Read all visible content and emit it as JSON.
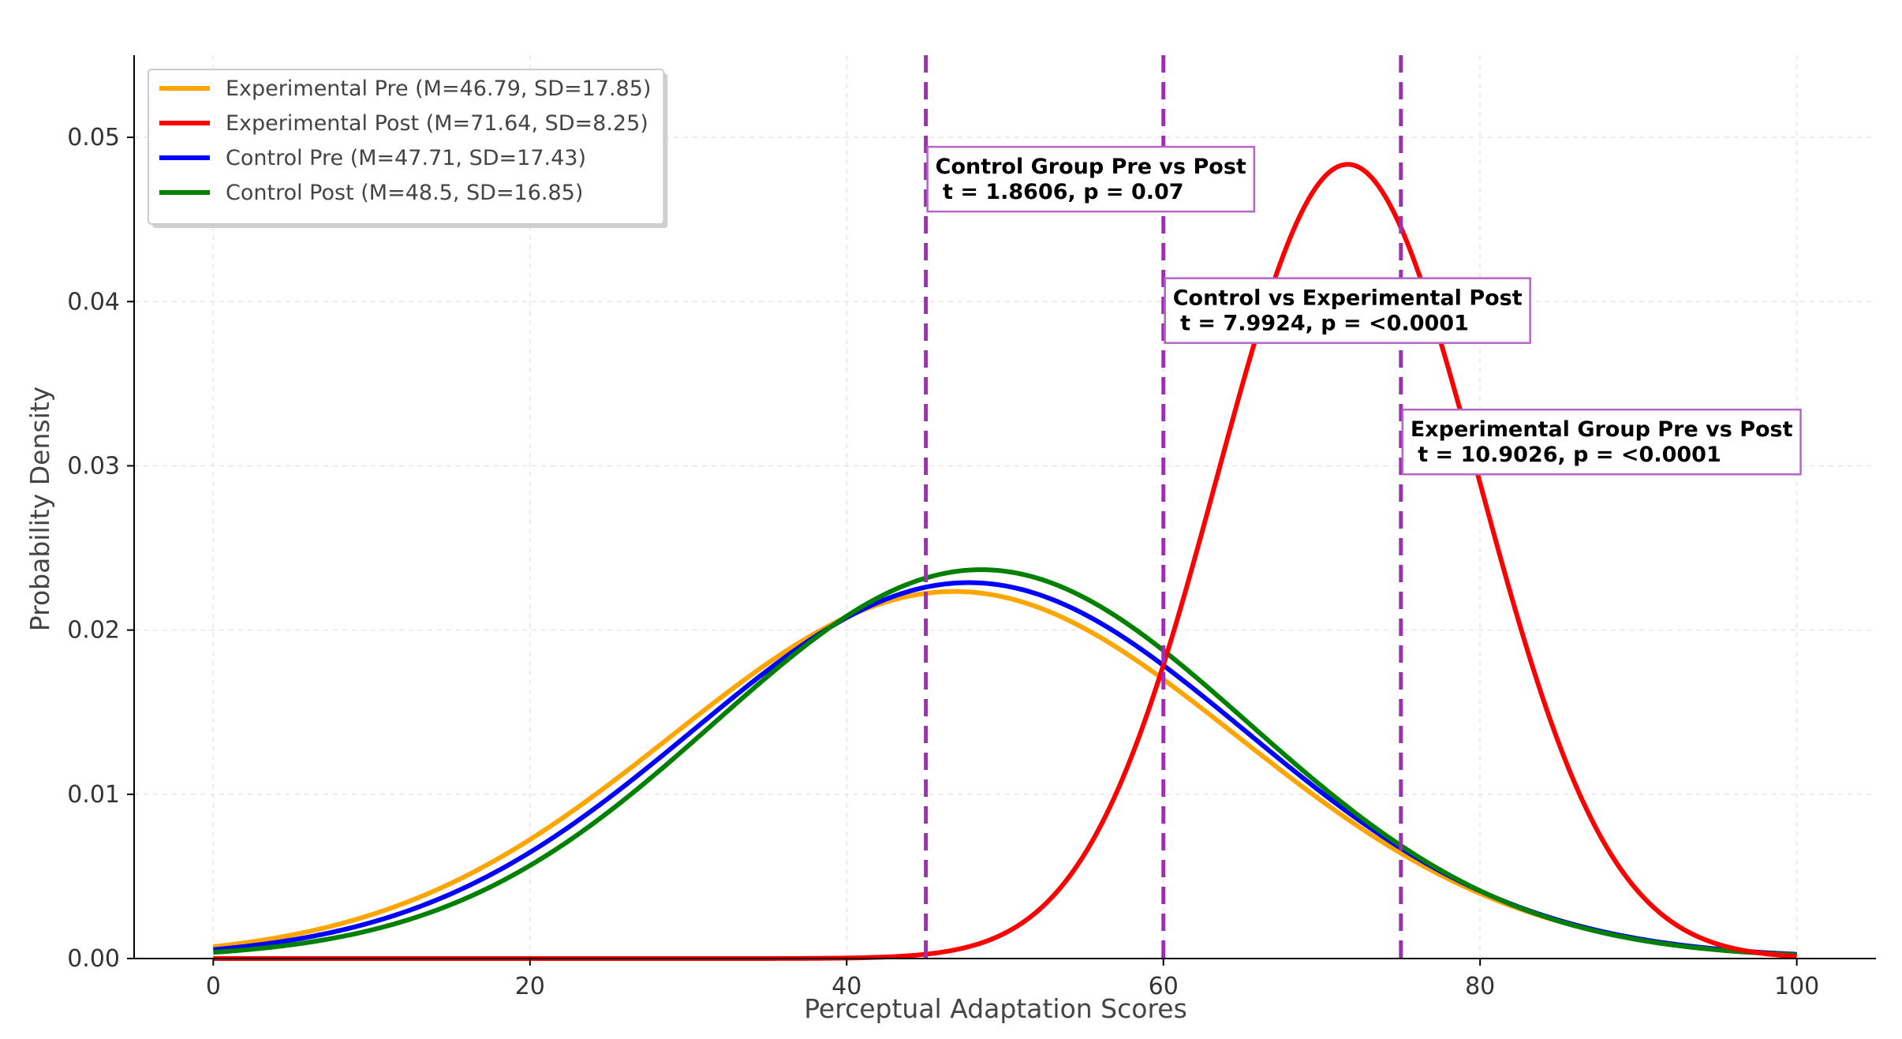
{
  "chart_data": {
    "type": "line",
    "title": "",
    "xlabel": "Perceptual Adaptation Scores",
    "ylabel": "Probability Density",
    "xlim": [
      -5,
      105
    ],
    "ylim": [
      0.0,
      0.055
    ],
    "grid": true,
    "legend_position": "top-left",
    "xticks": [
      0,
      20,
      40,
      60,
      80,
      100
    ],
    "xtick_labels": [
      "0",
      "20",
      "40",
      "60",
      "80",
      "100"
    ],
    "yticks": [
      0.0,
      0.01,
      0.02,
      0.03,
      0.04,
      0.05
    ],
    "ytick_labels": [
      "0.00",
      "0.01",
      "0.02",
      "0.03",
      "0.04",
      "0.05"
    ],
    "x_range": [
      0,
      100
    ],
    "series": [
      {
        "name": "Experimental Pre (M=46.79, SD=17.85)",
        "mean": 46.79,
        "sd": 17.85,
        "color": "#FFA500"
      },
      {
        "name": "Experimental Post (M=71.64, SD=8.25)",
        "mean": 71.64,
        "sd": 8.25,
        "color": "#FF0000"
      },
      {
        "name": "Control Pre (M=47.71, SD=17.43)",
        "mean": 47.71,
        "sd": 17.43,
        "color": "#0000FF"
      },
      {
        "name": "Control Post (M=48.5, SD=16.85)",
        "mean": 48.5,
        "sd": 16.85,
        "color": "#008000"
      }
    ],
    "vlines": [
      {
        "x": 45,
        "color": "#9B30B0",
        "style": "dashed"
      },
      {
        "x": 60,
        "color": "#9B30B0",
        "style": "dashed"
      },
      {
        "x": 75,
        "color": "#9B30B0",
        "style": "dashed"
      }
    ],
    "annotations": [
      {
        "anchor_x": 45,
        "anchor_y": 0.0475,
        "line1": "Control Group Pre vs Post",
        "line2": " t = 1.8606, p = 0.07"
      },
      {
        "anchor_x": 60,
        "anchor_y": 0.0395,
        "line1": "Control vs Experimental Post",
        "line2": " t = 7.9924, p = <0.0001"
      },
      {
        "anchor_x": 75,
        "anchor_y": 0.0315,
        "line1": "Experimental Group Pre vs Post",
        "line2": " t = 10.9026, p = <0.0001"
      }
    ]
  }
}
